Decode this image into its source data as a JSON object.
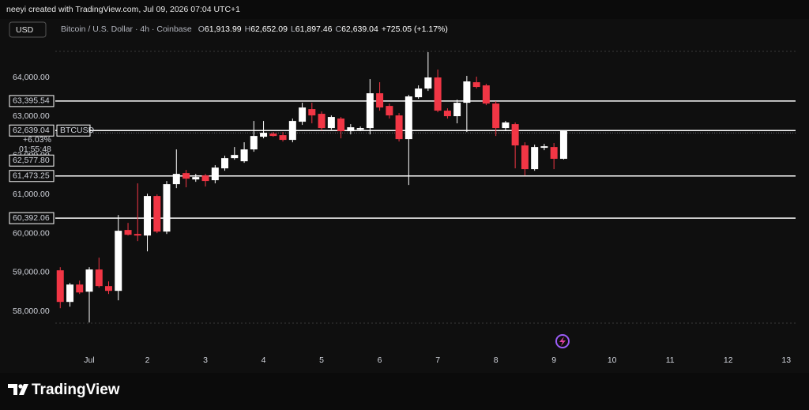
{
  "header": {
    "attribution": "neeyi created with TradingView.com, Jul 09, 2026 07:04 UTC+1",
    "brand": "TradingView"
  },
  "chart_data": {
    "type": "candlestick",
    "currency": "USD",
    "title": "Bitcoin / U.S. Dollar · 4h · Coinbase",
    "symbol": "BTCUSD",
    "ohlc": [
      {
        "key": "O",
        "label": "61,913.99"
      },
      {
        "key": "H",
        "label": "62,652.09"
      },
      {
        "key": "L",
        "label": "61,897.46"
      },
      {
        "key": "C",
        "label": "62,639.04"
      }
    ],
    "change": "+725.05 (+1.17%)",
    "up_color": "#ffffff",
    "down_color": "#f23645",
    "x": [
      0.5,
      0.667,
      0.833,
      1,
      1.167,
      1.333,
      1.5,
      1.667,
      1.833,
      2,
      2.167,
      2.333,
      2.5,
      2.667,
      2.833,
      3,
      3.167,
      3.333,
      3.5,
      3.667,
      3.833,
      4,
      4.167,
      4.333,
      4.5,
      4.667,
      4.833,
      5,
      5.167,
      5.333,
      5.5,
      5.667,
      5.833,
      6,
      6.167,
      6.333,
      6.5,
      6.667,
      6.833,
      7,
      7.167,
      7.333,
      7.5,
      7.667,
      7.833,
      8,
      8.167,
      8.333,
      8.5,
      8.667,
      8.833,
      9,
      9.167
    ],
    "open": [
      59054,
      58243,
      58689,
      58506,
      59075,
      58649,
      58527,
      60088,
      59986,
      59946,
      60960,
      60047,
      61264,
      61547,
      61385,
      61487,
      61365,
      61669,
      61932,
      61851,
      62155,
      62480,
      62561,
      62520,
      62399,
      62865,
      63189,
      63068,
      62703,
      62946,
      62622,
      62662,
      62703,
      63595,
      63270,
      63027,
      62419,
      63493,
      63716,
      64000,
      63149,
      63007,
      63351,
      63878,
      63797,
      63331,
      62703,
      62804,
      62257,
      61649,
      62196,
      62216,
      61913.99
    ],
    "high": [
      59135,
      58730,
      58790,
      59135,
      59378,
      58770,
      60473,
      60270,
      61284,
      61020,
      61000,
      61345,
      62155,
      61628,
      61527,
      61527,
      61750,
      61993,
      62216,
      62338,
      62885,
      62885,
      62601,
      62601,
      62946,
      63351,
      63351,
      63128,
      63027,
      62987,
      62804,
      62743,
      63959,
      63878,
      63331,
      63088,
      63554,
      63797,
      64649,
      64203,
      63209,
      63432,
      64041,
      64020,
      63838,
      63392,
      62885,
      62845,
      62338,
      62277,
      62297,
      62318,
      62652.09
    ],
    "low": [
      58081,
      58122,
      58446,
      57716,
      58608,
      58446,
      58284,
      59946,
      59804,
      59540,
      60007,
      59986,
      61162,
      61183,
      61324,
      61203,
      61284,
      61608,
      61892,
      61811,
      62095,
      62439,
      62480,
      62358,
      62338,
      62784,
      62824,
      62642,
      62662,
      62439,
      62540,
      62622,
      62540,
      63149,
      62946,
      62358,
      61243,
      63453,
      63655,
      63108,
      62946,
      62824,
      62601,
      63716,
      63290,
      62500,
      62642,
      61669,
      61486,
      61608,
      62135,
      61649,
      61897.46
    ],
    "close": [
      58243,
      58689,
      58486,
      59075,
      58649,
      58527,
      60068,
      59966,
      59946,
      60960,
      60047,
      61264,
      61527,
      61405,
      61446,
      61345,
      61689,
      61932,
      62013,
      62155,
      62500,
      62581,
      62500,
      62399,
      62885,
      63230,
      63027,
      62703,
      62987,
      62622,
      62723,
      62703,
      63595,
      63230,
      63027,
      62419,
      63514,
      63716,
      64000,
      63149,
      63007,
      63351,
      63899,
      63757,
      63331,
      62703,
      62845,
      62257,
      61649,
      62216,
      62236,
      61914,
      62639.04
    ],
    "xlim": [
      0.415,
      13.16
    ],
    "xticks": [
      {
        "value": 1,
        "label": "Jul"
      },
      2,
      3,
      4,
      5,
      6,
      7,
      8,
      9,
      10,
      11,
      12,
      13
    ],
    "ylim": [
      57700,
      64670
    ],
    "yticks": [
      {
        "value": 58000,
        "label": "58,000.00"
      },
      {
        "value": 59000,
        "label": "59,000.00"
      },
      {
        "value": 60000,
        "label": "60,000.00"
      },
      {
        "value": 61000,
        "label": "61,000.00"
      },
      {
        "value": 62000,
        "label": "62,000.00"
      },
      {
        "value": 63000,
        "label": "63,000.00"
      },
      {
        "value": 64000,
        "label": "64,000.00"
      }
    ],
    "price_lines": [
      {
        "value": 63395.54,
        "label": "63,395.54"
      },
      {
        "value": 61473.25,
        "label": "61,473.25"
      },
      {
        "value": 60392.06,
        "label": "60,392.06"
      }
    ],
    "last_price": {
      "value": 62639.04,
      "label": "62,639.04"
    },
    "change_pct": "+6.03%",
    "countdown": "01:55:48",
    "prev_price": {
      "value": 62577.8,
      "label": "62,577.80"
    }
  }
}
